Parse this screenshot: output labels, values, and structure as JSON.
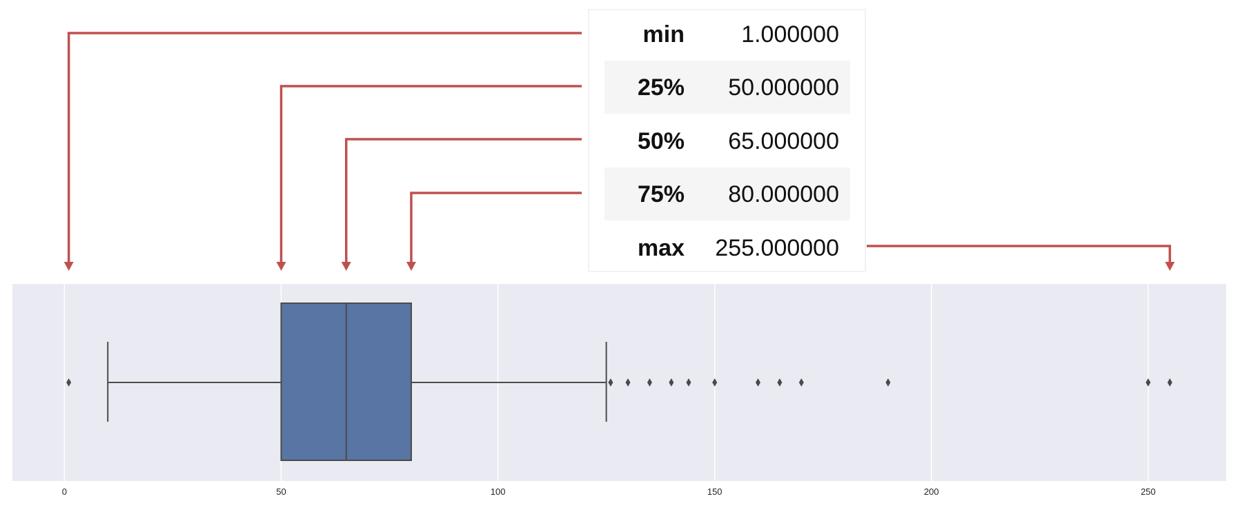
{
  "stats_table": {
    "rows": [
      {
        "label": "min",
        "value": "1.000000"
      },
      {
        "label": "25%",
        "value": "50.000000"
      },
      {
        "label": "50%",
        "value": "65.000000"
      },
      {
        "label": "75%",
        "value": "80.000000"
      },
      {
        "label": "max",
        "value": "255.000000"
      }
    ]
  },
  "chart_data": {
    "type": "box",
    "orientation": "horizontal",
    "xlim": [
      -12,
      268
    ],
    "xticks": [
      0,
      50,
      100,
      150,
      200,
      250
    ],
    "grid": true,
    "box": {
      "min": 1,
      "q1": 50,
      "median": 65,
      "q3": 80,
      "max": 255,
      "whisker_low": 10,
      "whisker_high": 125
    },
    "outliers": [
      1,
      126,
      130,
      135,
      140,
      144,
      150,
      160,
      165,
      170,
      190,
      250,
      255
    ],
    "colors": {
      "box_fill": "#5975a4",
      "plot_bg": "#eaeaf2",
      "line": "#4a4a4a",
      "annotation": "#c0504d",
      "table_stripe": "#f5f5f5"
    }
  }
}
